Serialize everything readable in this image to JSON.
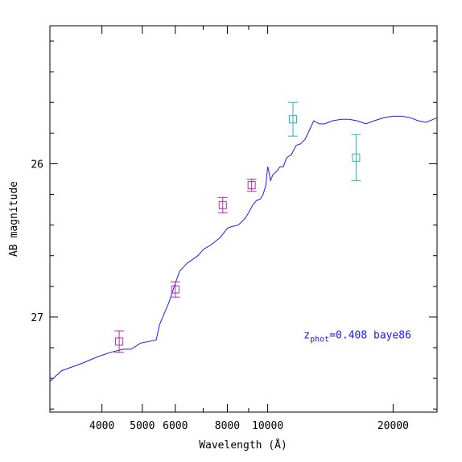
{
  "chart_data": {
    "type": "scatter",
    "xlabel": "Wavelength (Å)",
    "ylabel": "AB magnitude",
    "x_scale": "log",
    "xlim": [
      3000,
      25500
    ],
    "ylim": [
      27.62,
      25.1
    ],
    "y_inverted": true,
    "x_tick_labels": [
      {
        "value": 4000,
        "label": "4000"
      },
      {
        "value": 5000,
        "label": "5000"
      },
      {
        "value": 6000,
        "label": "6000"
      },
      {
        "value": 8000,
        "label": "8000"
      },
      {
        "value": 10000,
        "label": "10000"
      },
      {
        "value": 20000,
        "label": "20000"
      }
    ],
    "x_minor_ticks": [
      3000,
      7000,
      9000,
      30000
    ],
    "y_tick_labels": [
      {
        "value": 26,
        "label": "26"
      },
      {
        "value": 27,
        "label": "27"
      }
    ],
    "y_minor_ticks": [
      25.2,
      25.4,
      25.6,
      25.8,
      26.2,
      26.4,
      26.6,
      26.8,
      27.2,
      27.4,
      27.6
    ],
    "grid": false,
    "annotation": {
      "prefix": "z",
      "subscript": "phot",
      "suffix": "=0.408 baye86",
      "color": "#1a1aff",
      "x": 12200,
      "y": 27.14
    },
    "model_curve": {
      "color": "#1a1aff",
      "points": [
        [
          3000,
          27.42
        ],
        [
          3200,
          27.35
        ],
        [
          3600,
          27.3
        ],
        [
          3900,
          27.26
        ],
        [
          4200,
          27.23
        ],
        [
          4500,
          27.21
        ],
        [
          4700,
          27.21
        ],
        [
          4950,
          27.17
        ],
        [
          5400,
          27.15
        ],
        [
          5500,
          27.05
        ],
        [
          5800,
          26.9
        ],
        [
          6000,
          26.78
        ],
        [
          6150,
          26.7
        ],
        [
          6400,
          26.65
        ],
        [
          6800,
          26.6
        ],
        [
          7000,
          26.56
        ],
        [
          7300,
          26.53
        ],
        [
          7700,
          26.48
        ],
        [
          8000,
          26.42
        ],
        [
          8200,
          26.41
        ],
        [
          8500,
          26.4
        ],
        [
          8800,
          26.36
        ],
        [
          9000,
          26.32
        ],
        [
          9200,
          26.27
        ],
        [
          9400,
          26.24
        ],
        [
          9600,
          26.23
        ],
        [
          9750,
          26.2
        ],
        [
          9900,
          26.14
        ],
        [
          10000,
          26.02
        ],
        [
          10050,
          26.04
        ],
        [
          10150,
          26.11
        ],
        [
          10300,
          26.07
        ],
        [
          10500,
          26.05
        ],
        [
          10700,
          26.02
        ],
        [
          10900,
          26.02
        ],
        [
          11100,
          25.96
        ],
        [
          11400,
          25.94
        ],
        [
          11700,
          25.88
        ],
        [
          12000,
          25.87
        ],
        [
          12300,
          25.84
        ],
        [
          12600,
          25.78
        ],
        [
          12900,
          25.72
        ],
        [
          13300,
          25.74
        ],
        [
          13700,
          25.74
        ],
        [
          14300,
          25.72
        ],
        [
          15000,
          25.71
        ],
        [
          15700,
          25.71
        ],
        [
          16400,
          25.72
        ],
        [
          17200,
          25.74
        ],
        [
          18000,
          25.72
        ],
        [
          19000,
          25.7
        ],
        [
          20000,
          25.69
        ],
        [
          21000,
          25.69
        ],
        [
          22000,
          25.7
        ],
        [
          23000,
          25.72
        ],
        [
          24000,
          25.73
        ],
        [
          25500,
          25.7
        ]
      ]
    },
    "series": [
      {
        "color": "#b030b0",
        "points": [
          {
            "x": 4400,
            "y": 27.16,
            "err": 0.07
          },
          {
            "x": 6000,
            "y": 26.82,
            "err": 0.05
          },
          {
            "x": 7800,
            "y": 26.27,
            "err": 0.05
          },
          {
            "x": 9150,
            "y": 26.14,
            "err": 0.04
          }
        ]
      },
      {
        "color": "#20b8c0",
        "points": [
          {
            "x": 11500,
            "y": 25.71,
            "err": 0.11
          },
          {
            "x": 16300,
            "y": 25.96,
            "err": 0.15
          }
        ]
      }
    ]
  }
}
